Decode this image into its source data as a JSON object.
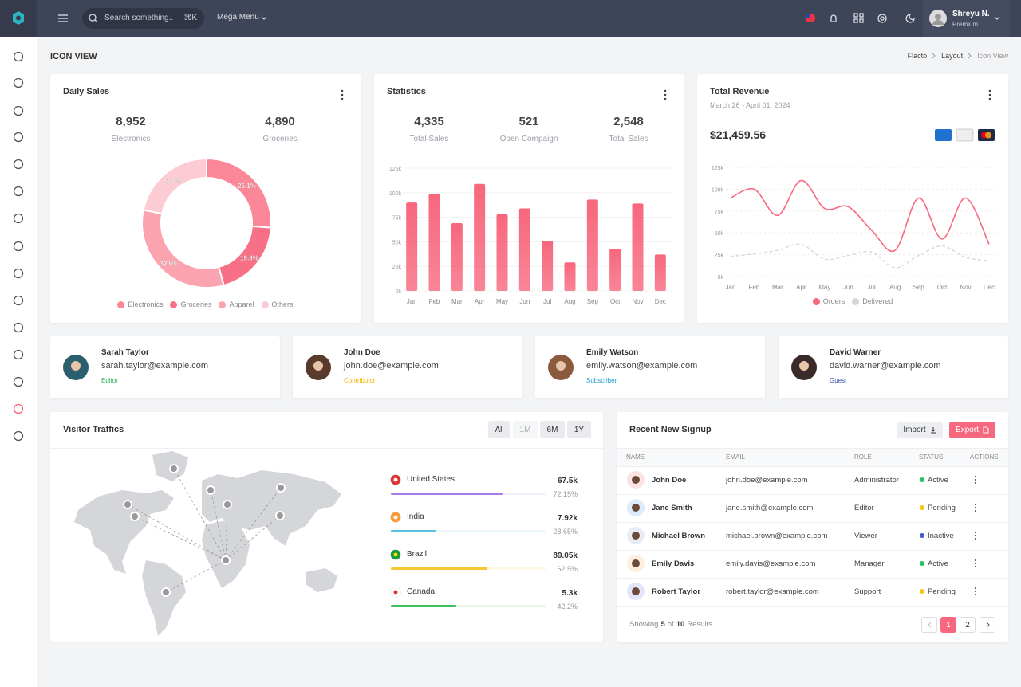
{
  "header": {
    "search_placeholder": "Search something..",
    "shortcut": "⌘K",
    "menu": "Mega Menu",
    "user": {
      "name": "Shreyu N.",
      "plan": "Premium"
    }
  },
  "page": {
    "title": "ICON VIEW",
    "breadcrumb": [
      "Flacto",
      "Layout",
      "Icon View"
    ]
  },
  "chart_data": [
    {
      "type": "pie",
      "title": "Daily Sales",
      "stats": [
        {
          "value": "8,952",
          "label": "Electronics"
        },
        {
          "value": "4,890",
          "label": "Groceries"
        }
      ],
      "categories": [
        "Electronics",
        "Groceries",
        "Apparel",
        "Others"
      ],
      "values": [
        26.1,
        19.6,
        32.6,
        21.7
      ],
      "value_labels": [
        "26.1%",
        "19.6%",
        "32.6%",
        "21.7%"
      ],
      "colors": [
        "#fb8798",
        "#f87085",
        "#fca3b0",
        "#fdcbd3"
      ],
      "legend": "bottom"
    },
    {
      "type": "bar",
      "title": "Statistics",
      "stats": [
        {
          "value": "4,335",
          "label": "Total Sales"
        },
        {
          "value": "521",
          "label": "Open Compaign"
        },
        {
          "value": "2,548",
          "label": "Total Sales"
        }
      ],
      "categories": [
        "Jan",
        "Feb",
        "Mar",
        "Apr",
        "May",
        "Jun",
        "Jul",
        "Aug",
        "Sep",
        "Oct",
        "Nov",
        "Dec"
      ],
      "values": [
        90,
        99,
        69,
        109,
        78,
        84,
        51,
        29,
        93,
        43,
        89,
        37
      ],
      "color": "#f7677d",
      "ylim": [
        0,
        125
      ],
      "yticks": [
        {
          "value": 0,
          "label": "0k"
        },
        {
          "value": 25,
          "label": "25k"
        },
        {
          "value": 50,
          "label": "50k"
        },
        {
          "value": 75,
          "label": "75k"
        },
        {
          "value": 100,
          "label": "100k"
        },
        {
          "value": 125,
          "label": "125k"
        }
      ],
      "grid": true
    },
    {
      "type": "line",
      "title": "Total Revenue",
      "subtitle": "March 26 - April 01, 2024",
      "total": "$21,459.56",
      "categories": [
        "Jan",
        "Feb",
        "Mar",
        "Apr",
        "May",
        "Jun",
        "Jul",
        "Aug",
        "Sep",
        "Oct",
        "Nov",
        "Dec"
      ],
      "series": [
        {
          "name": "Orders",
          "color": "#f7677d",
          "values": [
            90,
            100,
            70,
            110,
            78,
            80,
            53,
            30,
            90,
            43,
            90,
            37
          ]
        },
        {
          "name": "Delivered",
          "color": "#d6d6d6",
          "values": [
            23,
            26,
            30,
            37,
            20,
            24,
            28,
            10,
            24,
            35,
            22,
            18
          ]
        }
      ],
      "ylim": [
        0,
        125
      ],
      "yticks": [
        {
          "value": 0,
          "label": "0k"
        },
        {
          "value": 25,
          "label": "25k"
        },
        {
          "value": 50,
          "label": "50k"
        },
        {
          "value": 75,
          "label": "75k"
        },
        {
          "value": 100,
          "label": "100k"
        },
        {
          "value": 125,
          "label": "125k"
        }
      ],
      "grid": true,
      "legend": "bottom"
    }
  ],
  "users": [
    {
      "name": "Sarah Taylor",
      "email": "sarah.taylor@example.com",
      "role": "Editor",
      "role_color": "#22b34b"
    },
    {
      "name": "John Doe",
      "email": "john.doe@example.com",
      "role": "Contributor",
      "role_color": "#f0b400"
    },
    {
      "name": "Emily Watson",
      "email": "emily.watson@example.com",
      "role": "Subscriber",
      "role_color": "#1b9fd1"
    },
    {
      "name": "David Warner",
      "email": "david.warner@example.com",
      "role": "Guest",
      "role_color": "#3949ab"
    }
  ],
  "visitor_traffic": {
    "title": "Visitor Traffics",
    "filters": [
      "All",
      "1M",
      "6M",
      "1Y"
    ],
    "countries": [
      {
        "name": "United States",
        "value": "67.5k",
        "percent": 72.15,
        "percent_label": "72.15%",
        "color": "#a77ee8"
      },
      {
        "name": "India",
        "value": "7.92k",
        "percent": 28.65,
        "percent_label": "28.65%",
        "color": "#5bbfdd"
      },
      {
        "name": "Brazil",
        "value": "89.05k",
        "percent": 62.5,
        "percent_label": "62.5%",
        "color": "#f8c630"
      },
      {
        "name": "Canada",
        "value": "5.3k",
        "percent": 42.2,
        "percent_label": "42.2%",
        "color": "#3dc25c"
      }
    ]
  },
  "signups": {
    "title": "Recent New Signup",
    "buttons": [
      "Import",
      "Export"
    ],
    "columns": [
      "NAME",
      "EMAIL",
      "ROLE",
      "STATUS",
      "ACTIONS"
    ],
    "rows": [
      {
        "name": "John Doe",
        "email": "john.doe@example.com",
        "role": "Administrator",
        "status": "Active",
        "status_color": "#22c55e"
      },
      {
        "name": "Jane Smith",
        "email": "jane.smith@example.com",
        "role": "Editor",
        "status": "Pending",
        "status_color": "#f5c518"
      },
      {
        "name": "Michael Brown",
        "email": "michael.brown@example.com",
        "role": "Viewer",
        "status": "Inactive",
        "status_color": "#3f5bd6"
      },
      {
        "name": "Emily Davis",
        "email": "emily.davis@example.com",
        "role": "Manager",
        "status": "Active",
        "status_color": "#22c55e"
      },
      {
        "name": "Robert Taylor",
        "email": "robert.taylor@example.com",
        "role": "Support",
        "status": "Pending",
        "status_color": "#f5c518"
      }
    ],
    "footer": [
      "Showing",
      "5",
      "of",
      "10",
      "Results"
    ],
    "pages": [
      "1",
      "2"
    ]
  }
}
